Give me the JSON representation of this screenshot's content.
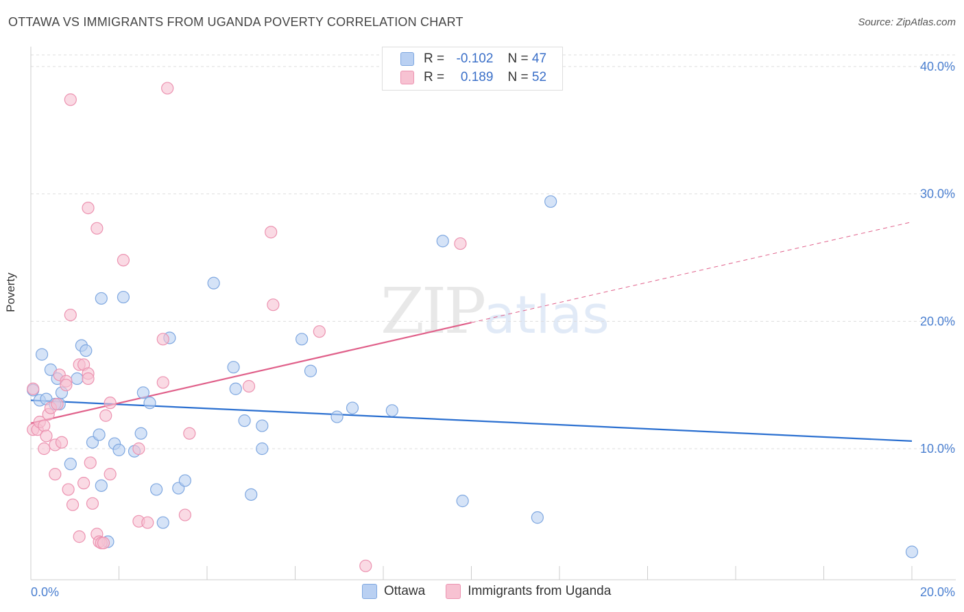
{
  "title": "OTTAWA VS IMMIGRANTS FROM UGANDA POVERTY CORRELATION CHART",
  "source": "Source: ZipAtlas.com",
  "watermark": {
    "zip": "ZIP",
    "atlas": "atlas"
  },
  "legend_top": {
    "rows": [
      {
        "r_label": "R =",
        "r_value": "-0.102",
        "n_label": "N =",
        "n_value": "47"
      },
      {
        "r_label": "R =",
        "r_value": "0.189",
        "n_label": "N =",
        "n_value": "52"
      }
    ]
  },
  "legend_bottom": [
    "Ottawa",
    "Immigrants from Uganda"
  ],
  "colors": {
    "ottawa_fill": "#b9d0f2",
    "ottawa_stroke": "#7ea7e0",
    "ottawa_line": "#2a6fd0",
    "uganda_fill": "#f7c2d2",
    "uganda_stroke": "#ec92b0",
    "uganda_line": "#e0608a",
    "grid": "#dddddd",
    "tick_label": "#4a7fd0"
  },
  "chart_data": {
    "type": "scatter",
    "title": "OTTAWA VS IMMIGRANTS FROM UGANDA POVERTY CORRELATION CHART",
    "xlabel": "",
    "ylabel": "Poverty",
    "xlim": [
      0,
      20
    ],
    "ylim": [
      0,
      40
    ],
    "x_tick_labels": [
      "0.0%",
      "20.0%"
    ],
    "y_ticks": [
      10,
      20,
      30,
      40
    ],
    "y_tick_labels": [
      "10.0%",
      "20.0%",
      "30.0%",
      "40.0%"
    ],
    "series": [
      {
        "name": "Ottawa",
        "r": -0.102,
        "n": 47,
        "trend": {
          "x": [
            0,
            20
          ],
          "y": [
            13.8,
            10.6
          ],
          "dashed_from": null
        },
        "points": [
          [
            0.25,
            17.4
          ],
          [
            0.2,
            13.8
          ],
          [
            0.35,
            13.9
          ],
          [
            0.45,
            16.2
          ],
          [
            0.6,
            15.5
          ],
          [
            0.7,
            14.4
          ],
          [
            0.65,
            13.5
          ],
          [
            1.15,
            18.1
          ],
          [
            1.25,
            17.7
          ],
          [
            1.05,
            15.5
          ],
          [
            1.6,
            21.8
          ],
          [
            2.1,
            21.9
          ],
          [
            0.9,
            8.8
          ],
          [
            1.4,
            10.5
          ],
          [
            1.55,
            11.1
          ],
          [
            1.9,
            10.4
          ],
          [
            2.0,
            9.9
          ],
          [
            2.35,
            9.8
          ],
          [
            2.5,
            11.2
          ],
          [
            2.55,
            14.4
          ],
          [
            2.7,
            13.6
          ],
          [
            3.15,
            18.7
          ],
          [
            1.6,
            7.1
          ],
          [
            1.75,
            2.7
          ],
          [
            2.85,
            6.8
          ],
          [
            3.0,
            4.2
          ],
          [
            3.35,
            6.9
          ],
          [
            3.5,
            7.5
          ],
          [
            4.15,
            23.0
          ],
          [
            4.6,
            16.4
          ],
          [
            4.65,
            14.7
          ],
          [
            4.85,
            12.2
          ],
          [
            5.0,
            6.4
          ],
          [
            5.25,
            11.8
          ],
          [
            5.25,
            10.0
          ],
          [
            6.15,
            18.6
          ],
          [
            6.35,
            16.1
          ],
          [
            7.3,
            13.2
          ],
          [
            6.95,
            12.5
          ],
          [
            8.2,
            13.0
          ],
          [
            9.35,
            26.3
          ],
          [
            9.8,
            5.9
          ],
          [
            11.5,
            4.6
          ],
          [
            11.8,
            29.4
          ],
          [
            20.0,
            1.9
          ],
          [
            0.05,
            14.6
          ],
          [
            0.55,
            13.5
          ]
        ]
      },
      {
        "name": "Immigrants from Uganda",
        "r": 0.189,
        "n": 52,
        "trend": {
          "x": [
            0,
            20
          ],
          "y": [
            12.0,
            27.8
          ],
          "dashed_from": 10.0
        },
        "points": [
          [
            0.05,
            14.7
          ],
          [
            0.05,
            11.5
          ],
          [
            0.15,
            11.5
          ],
          [
            0.2,
            12.1
          ],
          [
            0.3,
            11.8
          ],
          [
            0.3,
            10.0
          ],
          [
            0.35,
            11.0
          ],
          [
            0.4,
            12.7
          ],
          [
            0.45,
            13.2
          ],
          [
            0.55,
            10.3
          ],
          [
            0.6,
            13.5
          ],
          [
            0.65,
            15.8
          ],
          [
            0.7,
            10.5
          ],
          [
            0.8,
            15.3
          ],
          [
            0.8,
            15.0
          ],
          [
            0.9,
            20.5
          ],
          [
            0.55,
            8.0
          ],
          [
            0.85,
            6.8
          ],
          [
            0.95,
            5.6
          ],
          [
            1.1,
            16.6
          ],
          [
            1.2,
            16.6
          ],
          [
            1.3,
            15.9
          ],
          [
            1.3,
            15.5
          ],
          [
            1.2,
            7.3
          ],
          [
            1.35,
            8.9
          ],
          [
            1.4,
            5.7
          ],
          [
            1.5,
            3.3
          ],
          [
            1.55,
            2.7
          ],
          [
            1.6,
            2.6
          ],
          [
            1.65,
            2.6
          ],
          [
            1.7,
            12.6
          ],
          [
            1.8,
            13.6
          ],
          [
            1.8,
            8.0
          ],
          [
            2.1,
            24.8
          ],
          [
            1.5,
            27.3
          ],
          [
            1.3,
            28.9
          ],
          [
            0.9,
            37.4
          ],
          [
            3.0,
            18.6
          ],
          [
            3.0,
            15.2
          ],
          [
            2.45,
            10.0
          ],
          [
            2.45,
            4.3
          ],
          [
            2.65,
            4.2
          ],
          [
            3.5,
            4.8
          ],
          [
            3.6,
            11.2
          ],
          [
            3.1,
            38.3
          ],
          [
            5.45,
            27.0
          ],
          [
            5.5,
            21.3
          ],
          [
            4.95,
            14.9
          ],
          [
            6.55,
            19.2
          ],
          [
            9.75,
            26.1
          ],
          [
            7.6,
            0.8
          ],
          [
            1.1,
            3.1
          ]
        ]
      }
    ]
  }
}
